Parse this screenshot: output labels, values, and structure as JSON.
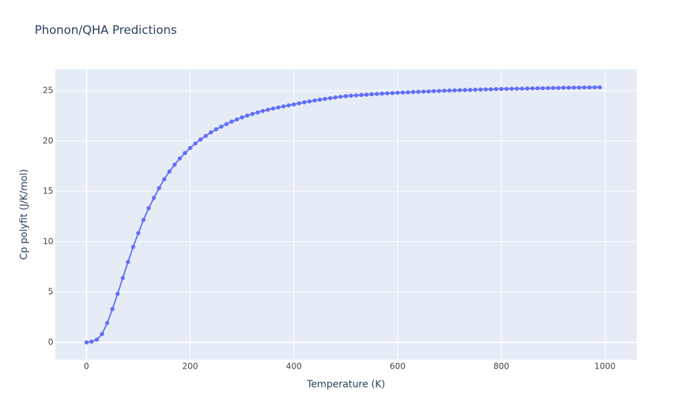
{
  "chart_data": {
    "type": "line",
    "title": "Phonon/QHA Predictions",
    "x_label": "Temperature (K)",
    "y_label": "Cp polyfit (J/K/mol)",
    "color": "#636efa",
    "grid": true,
    "markers": true,
    "xlim": [
      -60,
      1061
    ],
    "ylim": [
      -1.72,
      27.13
    ],
    "xticks": [
      0,
      200,
      400,
      600,
      800,
      1000
    ],
    "yticks": [
      0,
      5,
      10,
      15,
      20,
      25
    ],
    "x": [
      0,
      10,
      20,
      30,
      40,
      50,
      60,
      70,
      80,
      90,
      100,
      110,
      120,
      130,
      140,
      150,
      160,
      170,
      180,
      190,
      200,
      210,
      220,
      230,
      240,
      250,
      260,
      270,
      280,
      290,
      300,
      310,
      320,
      330,
      340,
      350,
      360,
      370,
      380,
      390,
      400,
      410,
      420,
      430,
      440,
      450,
      460,
      470,
      480,
      490,
      500,
      510,
      520,
      530,
      540,
      550,
      560,
      570,
      580,
      590,
      600,
      610,
      620,
      630,
      640,
      650,
      660,
      670,
      680,
      690,
      700,
      710,
      720,
      730,
      740,
      750,
      760,
      770,
      780,
      790,
      800,
      810,
      820,
      830,
      840,
      850,
      860,
      870,
      880,
      890,
      900,
      910,
      920,
      930,
      940,
      950,
      960,
      970,
      980,
      990
    ],
    "values": [
      0,
      0.07,
      0.27,
      0.82,
      1.92,
      3.3,
      4.81,
      6.39,
      7.97,
      9.48,
      10.85,
      12.16,
      13.32,
      14.35,
      15.32,
      16.2,
      16.96,
      17.65,
      18.27,
      18.8,
      19.3,
      19.75,
      20.15,
      20.5,
      20.85,
      21.15,
      21.42,
      21.68,
      21.92,
      22.14,
      22.34,
      22.52,
      22.68,
      22.83,
      22.97,
      23.1,
      23.22,
      23.33,
      23.43,
      23.53,
      23.63,
      23.74,
      23.84,
      23.93,
      24.02,
      24.1,
      24.18,
      24.25,
      24.32,
      24.39,
      24.45,
      24.49,
      24.53,
      24.57,
      24.6,
      24.64,
      24.67,
      24.7,
      24.73,
      24.76,
      24.79,
      24.81,
      24.83,
      24.86,
      24.88,
      24.9,
      24.92,
      24.95,
      24.97,
      24.99,
      25.01,
      25.03,
      25.04,
      25.06,
      25.07,
      25.09,
      25.1,
      25.12,
      25.13,
      25.15,
      25.16,
      25.17,
      25.18,
      25.19,
      25.2,
      25.21,
      25.22,
      25.23,
      25.24,
      25.25,
      25.26,
      25.27,
      25.28,
      25.28,
      25.29,
      25.3,
      25.31,
      25.31,
      25.32,
      25.33
    ]
  }
}
